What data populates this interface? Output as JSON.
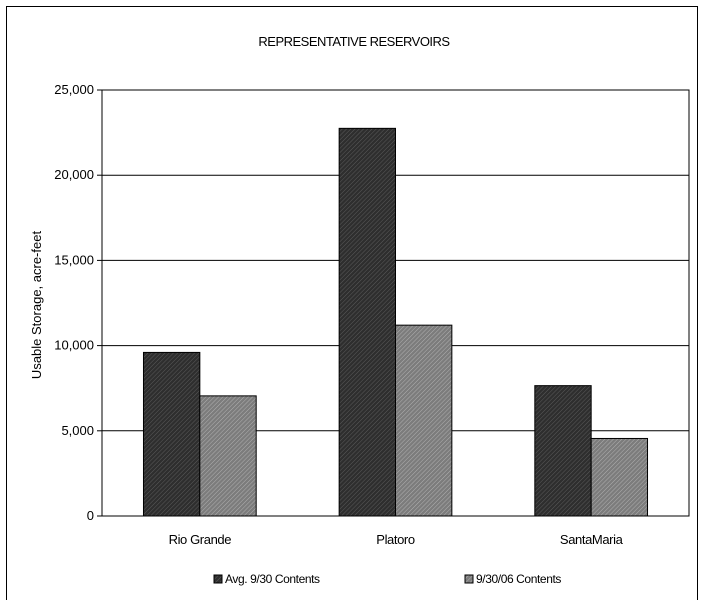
{
  "chart_data": {
    "type": "bar",
    "title": "REPRESENTATIVE RESERVOIRS",
    "xlabel": "",
    "ylabel": "Usable Storage, acre-feet",
    "categories": [
      "Rio Grande",
      "Platoro",
      "SantaMaria"
    ],
    "series": [
      {
        "name": "Avg. 9/30 Contents",
        "values": [
          9600,
          22750,
          7650
        ],
        "color": "#3a3a3a"
      },
      {
        "name": "9/30/06 Contents",
        "values": [
          7050,
          11200,
          4550
        ],
        "color": "#8a8a8a"
      }
    ],
    "ylim": [
      0,
      25000
    ],
    "yticks": [
      0,
      5000,
      10000,
      15000,
      20000,
      25000
    ],
    "ytick_labels": [
      "0",
      "5,000",
      "10,000",
      "15,000",
      "20,000",
      "25,000"
    ],
    "grid": true,
    "legend_position": "bottom"
  }
}
